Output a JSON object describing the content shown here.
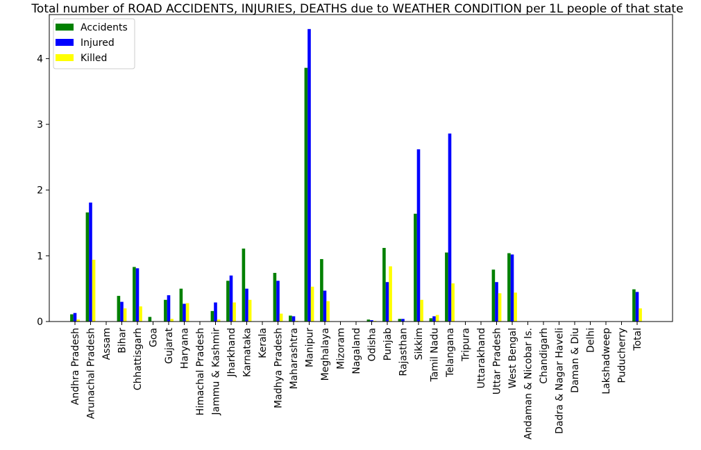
{
  "chart_data": {
    "type": "bar",
    "title": "Total number of ROAD ACCIDENTS, INJURIES, DEATHS due to WEATHER CONDITION per 1L people of that state",
    "xlabel": "",
    "ylabel": "",
    "ylim": [
      0,
      4.67
    ],
    "yticks": [
      0,
      1,
      2,
      3,
      4
    ],
    "legend_position": "top-left",
    "grid": false,
    "categories": [
      "Andhra Pradesh",
      "Arunachal Pradesh",
      "Assam",
      "Bihar",
      "Chhattisgarh",
      "Goa",
      "Gujarat",
      "Haryana",
      "Himachal Pradesh",
      "Jammu & Kashmir",
      "Jharkhand",
      "Karnataka",
      "Kerala",
      "Madhya Pradesh",
      "Maharashtra",
      "Manipur",
      "Meghalaya",
      "Mizoram",
      "Nagaland",
      "Odisha",
      "Punjab",
      "Rajasthan",
      "Sikkim",
      "Tamil Nadu",
      "Telangana",
      "Tripura",
      "Uttarakhand",
      "Uttar Pradesh",
      "West Bengal",
      "Andaman & Nicobar Is.",
      "Chandigarh",
      "Dadra & Nagar Haveli",
      "Daman & Diu",
      "Delhi",
      "Lakshadweep",
      "Puducherry",
      "Total"
    ],
    "series": [
      {
        "name": "Accidents",
        "color": "#008000",
        "values": [
          0.11,
          1.66,
          0,
          0.39,
          0.83,
          0.07,
          0.33,
          0.5,
          0,
          0.16,
          0.62,
          1.11,
          0,
          0.74,
          0.09,
          3.86,
          0.95,
          0,
          0,
          0.03,
          1.12,
          0.04,
          1.64,
          0.05,
          1.05,
          0,
          0,
          0.79,
          1.04,
          0,
          0,
          0,
          0,
          0,
          0,
          0,
          0.49
        ]
      },
      {
        "name": "Injured",
        "color": "#0000ff",
        "values": [
          0.13,
          1.81,
          0,
          0.3,
          0.81,
          0,
          0.4,
          0.27,
          0,
          0.29,
          0.7,
          0.5,
          0,
          0.62,
          0.08,
          4.45,
          0.47,
          0,
          0,
          0.02,
          0.6,
          0.04,
          2.62,
          0.08,
          2.86,
          0,
          0,
          0.6,
          1.02,
          0,
          0,
          0,
          0,
          0,
          0,
          0,
          0.45
        ]
      },
      {
        "name": "Killed",
        "color": "#ffff00",
        "values": [
          0.03,
          0.94,
          0,
          0.2,
          0.23,
          0,
          0.04,
          0.28,
          0,
          0.03,
          0.29,
          0.33,
          0,
          0.12,
          0.01,
          0.53,
          0.31,
          0,
          0,
          0.01,
          0.84,
          0,
          0.33,
          0.1,
          0.58,
          0,
          0,
          0.43,
          0.44,
          0,
          0,
          0,
          0,
          0,
          0,
          0,
          0.2
        ]
      }
    ]
  }
}
